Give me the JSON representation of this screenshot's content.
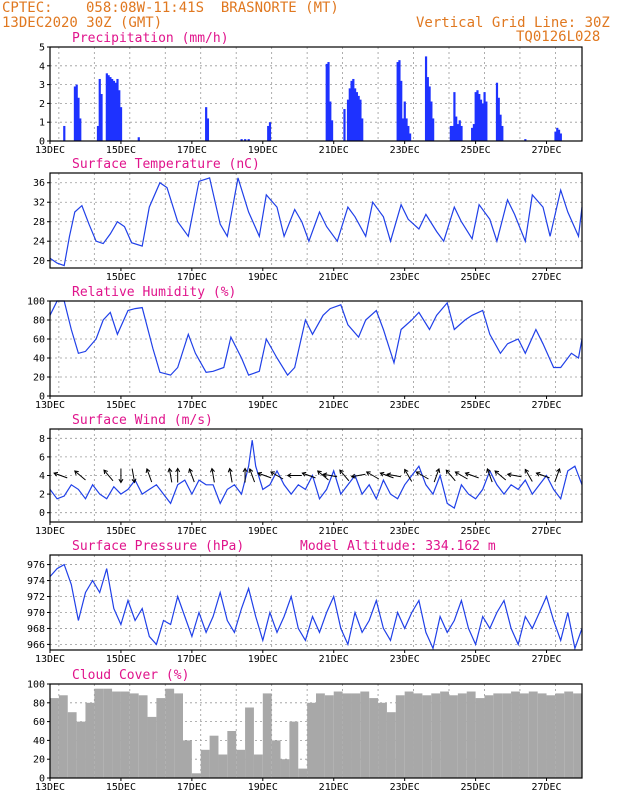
{
  "header": {
    "source": "CPTEC:",
    "location": "058:08W-11:41S  BRASNORTE (MT)",
    "run": "13DEC2020 30Z (GMT)",
    "vgrid": "Vertical Grid Line: 30Z",
    "code": "TQ0126L028"
  },
  "chart_data": [
    {
      "type": "bar",
      "title": "Precipitation (mm/h)",
      "ylim": [
        0,
        5
      ],
      "yticks": [
        0,
        1,
        2,
        3,
        4,
        5
      ],
      "xlabels": [
        "13DEC",
        "15DEC",
        "17DEC",
        "19DEC",
        "21DEC",
        "23DEC",
        "25DEC",
        "27DEC"
      ],
      "xlim_days": [
        13,
        28
      ],
      "x": [
        13.4,
        13.7,
        13.75,
        13.8,
        13.85,
        14.35,
        14.4,
        14.45,
        14.6,
        14.65,
        14.7,
        14.75,
        14.8,
        14.85,
        14.9,
        14.95,
        15.0,
        15.5,
        17.4,
        17.45,
        18.4,
        18.5,
        18.6,
        19.15,
        19.2,
        20.8,
        20.85,
        20.9,
        20.95,
        21.3,
        21.4,
        21.45,
        21.5,
        21.55,
        21.6,
        21.65,
        21.7,
        21.75,
        21.8,
        22.8,
        22.85,
        22.9,
        22.95,
        23.0,
        23.05,
        23.1,
        23.15,
        23.6,
        23.65,
        23.7,
        23.75,
        23.8,
        24.3,
        24.35,
        24.4,
        24.45,
        24.5,
        24.55,
        24.6,
        24.9,
        24.95,
        25.0,
        25.05,
        25.1,
        25.15,
        25.2,
        25.25,
        25.3,
        25.6,
        25.65,
        25.7,
        25.75,
        26.4,
        27.25,
        27.3,
        27.35,
        27.4
      ],
      "values": [
        0.8,
        2.9,
        3.0,
        2.3,
        1.2,
        0.8,
        3.3,
        2.5,
        3.6,
        3.5,
        3.4,
        3.3,
        3.2,
        3.1,
        3.3,
        2.7,
        1.8,
        0.2,
        1.8,
        1.2,
        0.1,
        0.1,
        0.1,
        0.8,
        1.0,
        4.1,
        4.2,
        2.1,
        1.1,
        1.7,
        2.2,
        2.8,
        3.2,
        3.3,
        2.8,
        2.6,
        2.4,
        2.2,
        1.2,
        4.2,
        4.3,
        3.2,
        1.2,
        2.1,
        1.2,
        0.8,
        0.4,
        4.5,
        3.4,
        2.9,
        2.1,
        1.2,
        0.8,
        0.8,
        2.6,
        1.3,
        0.9,
        1.1,
        0.8,
        0.7,
        0.9,
        2.6,
        2.7,
        2.5,
        2.2,
        2.0,
        2.6,
        2.1,
        3.1,
        2.3,
        1.4,
        0.8,
        0.1,
        0.5,
        0.7,
        0.6,
        0.4
      ]
    },
    {
      "type": "line",
      "title": "Surface Temperature (nC)",
      "ylim": [
        18.5,
        38
      ],
      "yticks": [
        20,
        24,
        28,
        32,
        36
      ],
      "xlabels": [
        "15DEC",
        "17DEC",
        "19DEC",
        "21DEC",
        "23DEC",
        "25DEC",
        "27DEC"
      ],
      "xlim_days": [
        13,
        28
      ],
      "x": [
        13,
        13.2,
        13.4,
        13.55,
        13.7,
        13.9,
        14.1,
        14.3,
        14.5,
        14.7,
        14.9,
        15.1,
        15.3,
        15.6,
        15.8,
        16.1,
        16.3,
        16.6,
        16.9,
        17.2,
        17.5,
        17.8,
        18.0,
        18.3,
        18.6,
        18.9,
        19.1,
        19.4,
        19.6,
        19.9,
        20.1,
        20.3,
        20.6,
        20.8,
        21.1,
        21.4,
        21.6,
        21.9,
        22.1,
        22.4,
        22.6,
        22.9,
        23.1,
        23.4,
        23.6,
        23.9,
        24.1,
        24.4,
        24.6,
        24.9,
        25.1,
        25.4,
        25.6,
        25.9,
        26.1,
        26.4,
        26.6,
        26.9,
        27.1,
        27.4,
        27.6,
        27.9,
        28.0
      ],
      "values": [
        20.5,
        19.5,
        19.0,
        25.0,
        30.0,
        31.3,
        27.5,
        24.0,
        23.5,
        25.5,
        28.0,
        27.0,
        23.7,
        23.0,
        31.0,
        36.0,
        35.0,
        28.0,
        25.0,
        36.3,
        37.0,
        27.5,
        25.0,
        37.0,
        30.0,
        25.0,
        33.5,
        31.0,
        25.0,
        30.5,
        28.0,
        24.0,
        30.0,
        27.0,
        24.0,
        31.0,
        29.0,
        25.0,
        32.0,
        29.0,
        24.0,
        31.5,
        28.5,
        26.5,
        29.5,
        26.0,
        24.0,
        31.0,
        28.0,
        24.5,
        31.5,
        28.5,
        24.0,
        32.5,
        29.5,
        24.0,
        33.5,
        31.0,
        25.0,
        34.5,
        30.0,
        25.0,
        31.0
      ]
    },
    {
      "type": "line",
      "title": "Relative Humidity (%)",
      "ylim": [
        0,
        100
      ],
      "yticks": [
        0,
        20,
        40,
        60,
        80,
        100
      ],
      "xlabels": [
        "13DEC",
        "15DEC",
        "17DEC",
        "19DEC",
        "21DEC",
        "23DEC",
        "25DEC",
        "27DEC"
      ],
      "xlim_days": [
        13,
        28
      ],
      "x": [
        13,
        13.2,
        13.4,
        13.6,
        13.8,
        14.0,
        14.3,
        14.5,
        14.7,
        14.9,
        15.2,
        15.4,
        15.6,
        15.9,
        16.1,
        16.4,
        16.6,
        16.9,
        17.1,
        17.4,
        17.6,
        17.9,
        18.1,
        18.4,
        18.6,
        18.9,
        19.1,
        19.4,
        19.7,
        19.9,
        20.2,
        20.4,
        20.7,
        20.9,
        21.2,
        21.4,
        21.7,
        21.9,
        22.2,
        22.4,
        22.7,
        22.9,
        23.2,
        23.4,
        23.7,
        23.9,
        24.2,
        24.4,
        24.7,
        24.9,
        25.2,
        25.4,
        25.7,
        25.9,
        26.2,
        26.4,
        26.7,
        26.9,
        27.2,
        27.4,
        27.7,
        27.9,
        28.0
      ],
      "values": [
        85,
        100,
        100,
        70,
        45,
        47,
        60,
        80,
        88,
        65,
        90,
        92,
        93,
        50,
        25,
        22,
        30,
        65,
        45,
        25,
        26,
        30,
        62,
        40,
        22,
        26,
        60,
        40,
        22,
        30,
        80,
        65,
        85,
        92,
        96,
        75,
        62,
        80,
        90,
        70,
        35,
        70,
        80,
        88,
        70,
        85,
        98,
        70,
        80,
        85,
        90,
        65,
        45,
        55,
        60,
        45,
        70,
        55,
        30,
        30,
        45,
        40,
        60
      ]
    },
    {
      "type": "line",
      "title": "Surface Wind (m/s)",
      "ylim": [
        -1,
        9
      ],
      "yticks": [
        0,
        2,
        4,
        6,
        8
      ],
      "xlabels": [
        "13DEC",
        "15DEC",
        "17DEC",
        "19DEC",
        "21DEC",
        "23DEC",
        "25DEC",
        "27DEC"
      ],
      "xlim_days": [
        13,
        28
      ],
      "x": [
        13,
        13.2,
        13.4,
        13.6,
        13.8,
        14.0,
        14.2,
        14.4,
        14.6,
        14.8,
        15.0,
        15.2,
        15.4,
        15.6,
        15.8,
        16.0,
        16.2,
        16.4,
        16.6,
        16.8,
        17.0,
        17.2,
        17.4,
        17.6,
        17.8,
        18.0,
        18.2,
        18.4,
        18.6,
        18.7,
        18.8,
        19.0,
        19.2,
        19.4,
        19.6,
        19.8,
        20.0,
        20.2,
        20.4,
        20.6,
        20.8,
        21.0,
        21.2,
        21.4,
        21.6,
        21.8,
        22.0,
        22.2,
        22.4,
        22.6,
        22.8,
        23.0,
        23.2,
        23.4,
        23.6,
        23.8,
        24.0,
        24.2,
        24.4,
        24.6,
        24.8,
        25.0,
        25.2,
        25.4,
        25.6,
        25.8,
        26.0,
        26.2,
        26.4,
        26.6,
        26.8,
        27.0,
        27.2,
        27.4,
        27.6,
        27.8,
        28.0
      ],
      "values": [
        2.5,
        1.5,
        1.8,
        3.0,
        2.5,
        1.5,
        3.0,
        2.0,
        1.5,
        2.8,
        2.0,
        2.5,
        3.5,
        2.0,
        2.5,
        3.0,
        2.0,
        1.0,
        3.0,
        3.5,
        2.0,
        3.5,
        3.0,
        3.0,
        1.0,
        2.5,
        3.0,
        2.0,
        5.0,
        7.8,
        5.0,
        2.5,
        3.0,
        4.5,
        3.0,
        2.0,
        3.0,
        2.5,
        4.0,
        1.5,
        2.5,
        4.5,
        2.0,
        3.0,
        4.0,
        2.0,
        3.0,
        1.5,
        3.5,
        2.0,
        1.5,
        3.0,
        4.0,
        5.0,
        3.0,
        2.0,
        4.0,
        1.0,
        0.5,
        3.0,
        2.0,
        1.5,
        2.5,
        4.5,
        3.0,
        2.0,
        3.0,
        2.5,
        3.5,
        2.0,
        3.0,
        4.0,
        2.5,
        1.5,
        4.5,
        5.0,
        3.0
      ]
    },
    {
      "type": "line",
      "title": "Surface Pressure (hPa)",
      "subtitle": "Model Altitude: 334.162 m",
      "ylim": [
        965.3,
        977.2
      ],
      "yticks": [
        966,
        968,
        970,
        972,
        974,
        976
      ],
      "xlabels": [
        "13DEC",
        "15DEC",
        "17DEC",
        "19DEC",
        "21DEC",
        "23DEC",
        "25DEC",
        "27DEC"
      ],
      "xlim_days": [
        13,
        28
      ],
      "x": [
        13,
        13.2,
        13.4,
        13.6,
        13.8,
        14.0,
        14.2,
        14.4,
        14.6,
        14.8,
        15.0,
        15.2,
        15.4,
        15.6,
        15.8,
        16.0,
        16.2,
        16.4,
        16.6,
        16.8,
        17.0,
        17.2,
        17.4,
        17.6,
        17.8,
        18.0,
        18.2,
        18.4,
        18.6,
        18.8,
        19.0,
        19.2,
        19.4,
        19.6,
        19.8,
        20.0,
        20.2,
        20.4,
        20.6,
        20.8,
        21.0,
        21.2,
        21.4,
        21.6,
        21.8,
        22.0,
        22.2,
        22.4,
        22.6,
        22.8,
        23.0,
        23.2,
        23.4,
        23.6,
        23.8,
        24.0,
        24.2,
        24.4,
        24.6,
        24.8,
        25.0,
        25.2,
        25.4,
        25.6,
        25.8,
        26.0,
        26.2,
        26.4,
        26.6,
        26.8,
        27.0,
        27.2,
        27.4,
        27.6,
        27.8,
        28.0
      ],
      "values": [
        974.5,
        975.5,
        976.0,
        973.5,
        969.0,
        972.5,
        974.0,
        972.5,
        975.5,
        970.5,
        968.5,
        971.5,
        969.0,
        970.5,
        967.0,
        966.0,
        969.0,
        968.5,
        972.0,
        969.5,
        967.0,
        970.0,
        967.5,
        969.5,
        972.5,
        969.0,
        967.5,
        970.5,
        973.0,
        969.5,
        966.5,
        970.0,
        967.5,
        969.5,
        972.0,
        968.0,
        966.5,
        969.5,
        967.5,
        970.0,
        972.0,
        968.0,
        966.0,
        970.0,
        967.5,
        969.0,
        971.5,
        968.0,
        966.5,
        970.0,
        968.0,
        970.0,
        971.5,
        967.5,
        965.5,
        969.5,
        967.5,
        969.0,
        971.5,
        968.0,
        966.0,
        969.5,
        968.0,
        970.0,
        971.5,
        968.0,
        966.0,
        969.5,
        968.0,
        970.0,
        972.0,
        969.0,
        966.5,
        970.0,
        965.5,
        968.0
      ]
    },
    {
      "type": "bar",
      "title": "Cloud Cover (%)",
      "ylim": [
        0,
        100
      ],
      "yticks": [
        0,
        20,
        40,
        60,
        80,
        100
      ],
      "xlabels": [
        "13DEC",
        "15DEC",
        "17DEC",
        "19DEC",
        "21DEC",
        "23DEC",
        "25DEC",
        "27DEC"
      ],
      "xlim_days": [
        13,
        28
      ],
      "x": [
        13,
        13.25,
        13.5,
        13.75,
        14.0,
        14.25,
        14.5,
        14.75,
        15.0,
        15.25,
        15.5,
        15.75,
        16.0,
        16.25,
        16.5,
        16.75,
        17.0,
        17.25,
        17.5,
        17.75,
        18.0,
        18.25,
        18.5,
        18.75,
        19.0,
        19.25,
        19.5,
        19.75,
        20.0,
        20.25,
        20.5,
        20.75,
        21.0,
        21.25,
        21.5,
        21.75,
        22.0,
        22.25,
        22.5,
        22.75,
        23.0,
        23.25,
        23.5,
        23.75,
        24.0,
        24.25,
        24.5,
        24.75,
        25.0,
        25.25,
        25.5,
        25.75,
        26.0,
        26.25,
        26.5,
        26.75,
        27.0,
        27.25,
        27.5,
        27.75,
        28.0
      ],
      "values": [
        85,
        88,
        70,
        60,
        80,
        95,
        95,
        92,
        92,
        90,
        88,
        65,
        85,
        95,
        90,
        40,
        5,
        30,
        45,
        25,
        50,
        30,
        75,
        25,
        90,
        40,
        20,
        60,
        10,
        80,
        90,
        88,
        92,
        90,
        90,
        92,
        85,
        80,
        70,
        88,
        92,
        90,
        88,
        90,
        92,
        88,
        90,
        92,
        85,
        88,
        90,
        90,
        92,
        90,
        92,
        90,
        88,
        90,
        92,
        90,
        88
      ]
    }
  ]
}
